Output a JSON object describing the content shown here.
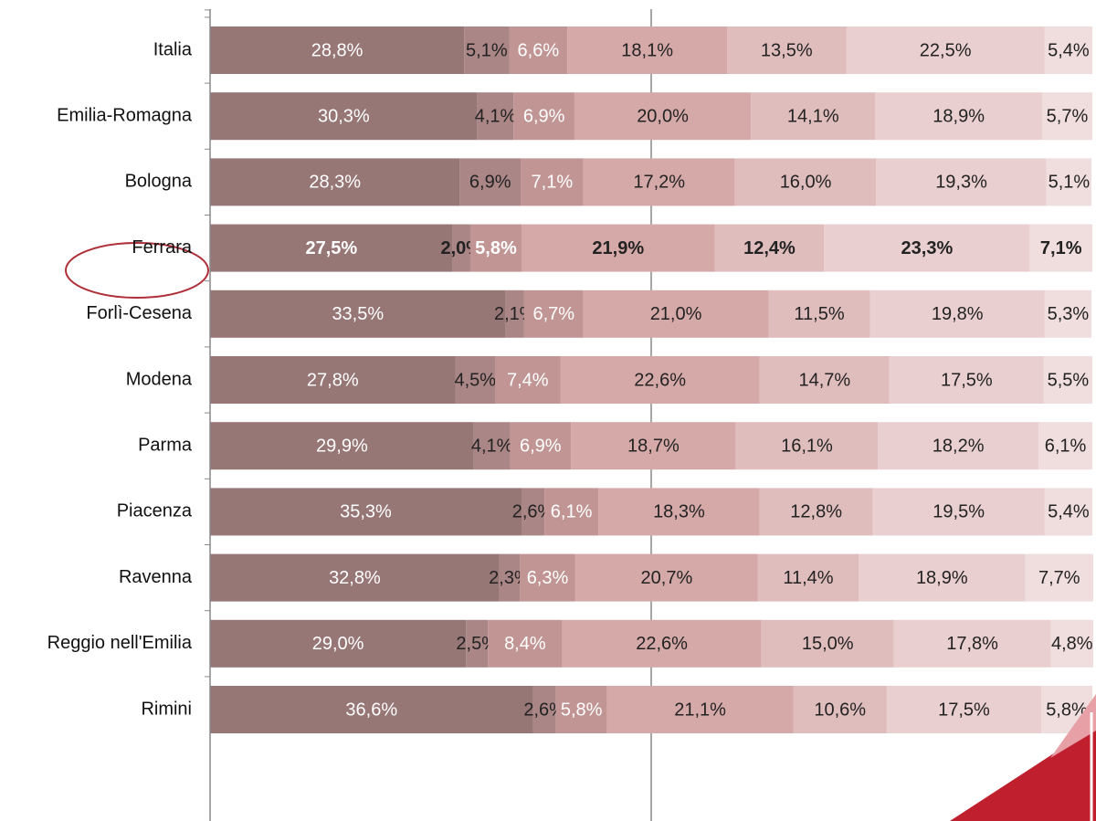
{
  "chart_data": {
    "type": "stacked-bar-horizontal",
    "categories": [
      "Italia",
      "Emilia-Romagna",
      "Bologna",
      "Ferrara",
      "Forlì-Cesena",
      "Modena",
      "Parma",
      "Piacenza",
      "Ravenna",
      "Reggio nell'Emilia",
      "Rimini"
    ],
    "xlim": [
      0,
      100
    ],
    "xgrid": [
      50
    ],
    "highlight_index": 3,
    "series": [
      {
        "color": "#977676",
        "label_color": "#ffffff",
        "values": [
          28.8,
          30.3,
          28.3,
          27.5,
          33.5,
          27.8,
          29.9,
          35.3,
          32.8,
          29.0,
          36.6
        ],
        "value_labels": [
          "28,8%",
          "30,3%",
          "28,3%",
          "27,5%",
          "33,5%",
          "27,8%",
          "29,9%",
          "35,3%",
          "32,8%",
          "29,0%",
          "36,6%"
        ]
      },
      {
        "color": "#aa8686",
        "label_color": "#222222",
        "values": [
          5.1,
          4.1,
          6.9,
          2.0,
          2.1,
          4.5,
          4.1,
          2.6,
          2.3,
          2.5,
          2.6
        ],
        "value_labels": [
          "5,1%",
          "4,1%",
          "6,9%",
          "2,0%",
          "2,1%",
          "4,5%",
          "4,1%",
          "2,6%",
          "2,3%",
          "2,5%",
          "2,6%"
        ]
      },
      {
        "color": "#c29595",
        "label_color": "#ffffff",
        "values": [
          6.6,
          6.9,
          7.1,
          5.8,
          6.7,
          7.4,
          6.9,
          6.1,
          6.3,
          8.4,
          5.8
        ],
        "value_labels": [
          "6,6%",
          "6,9%",
          "7,1%",
          "5,8%",
          "6,7%",
          "7,4%",
          "6,9%",
          "6,1%",
          "6,3%",
          "8,4%",
          "5,8%"
        ]
      },
      {
        "color": "#d6a9a9",
        "label_color": "#222222",
        "values": [
          18.1,
          20.0,
          17.2,
          21.9,
          21.0,
          22.6,
          18.7,
          18.3,
          20.7,
          22.6,
          21.1
        ],
        "value_labels": [
          "18,1%",
          "20,0%",
          "17,2%",
          "21,9%",
          "21,0%",
          "22,6%",
          "18,7%",
          "18,3%",
          "20,7%",
          "22,6%",
          "21,1%"
        ]
      },
      {
        "color": "#e0bdbd",
        "label_color": "#222222",
        "values": [
          13.5,
          14.1,
          16.0,
          12.4,
          11.5,
          14.7,
          16.1,
          12.8,
          11.4,
          15.0,
          10.6
        ],
        "value_labels": [
          "13,5%",
          "14,1%",
          "16,0%",
          "12,4%",
          "11,5%",
          "14,7%",
          "16,1%",
          "12,8%",
          "11,4%",
          "15,0%",
          "10,6%"
        ]
      },
      {
        "color": "#e9cfcf",
        "label_color": "#222222",
        "values": [
          22.5,
          18.9,
          19.3,
          23.3,
          19.8,
          17.5,
          18.2,
          19.5,
          18.9,
          17.8,
          17.5
        ],
        "value_labels": [
          "22,5%",
          "18,9%",
          "19,3%",
          "23,3%",
          "19,8%",
          "17,5%",
          "18,2%",
          "19,5%",
          "18,9%",
          "17,8%",
          "17,5%"
        ]
      },
      {
        "color": "#f0dddd",
        "label_color": "#222222",
        "values": [
          5.4,
          5.7,
          5.1,
          7.1,
          5.3,
          5.5,
          6.1,
          5.4,
          7.7,
          4.8,
          5.8
        ],
        "value_labels": [
          "5,4%",
          "5,7%",
          "5,1%",
          "7,1%",
          "5,3%",
          "5,5%",
          "6,1%",
          "5,4%",
          "7,7%",
          "4,8%",
          "5,8%"
        ]
      }
    ]
  }
}
